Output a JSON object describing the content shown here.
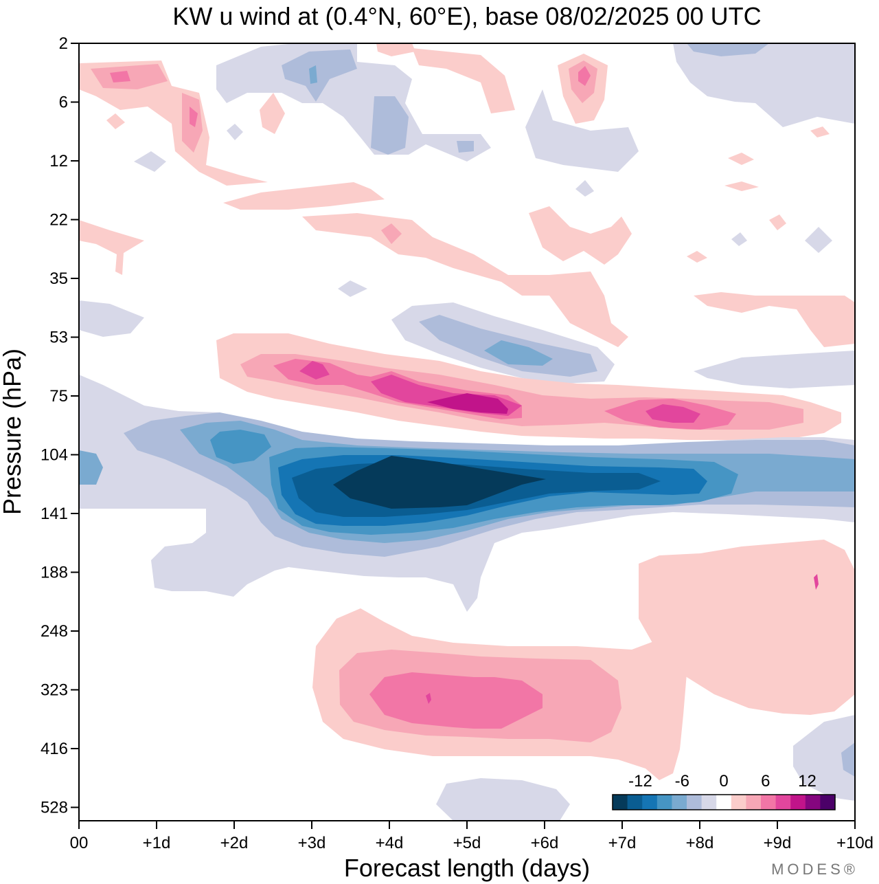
{
  "chart_data": {
    "type": "heatmap",
    "title": "KW u wind at (0.4°N, 60°E),  base 08/02/2025  00 UTC",
    "xlabel": "Forecast length (days)",
    "ylabel": "Pressure (hPa)",
    "x_ticks": [
      "00",
      "+1d",
      "+2d",
      "+3d",
      "+4d",
      "+5d",
      "+6d",
      "+7d",
      "+8d",
      "+9d",
      "+10d"
    ],
    "xlim": [
      0,
      10
    ],
    "y_ticks": [
      2,
      6,
      12,
      22,
      35,
      53,
      75,
      104,
      141,
      188,
      248,
      323,
      416,
      528
    ],
    "y_scale": "log",
    "colorbar": {
      "labels": [
        "-12",
        "-6",
        "0",
        "6",
        "12"
      ],
      "label_positions": [
        -12,
        -6,
        0,
        6,
        12
      ],
      "levels": [
        -16,
        -14,
        -12,
        -10,
        -8,
        -6,
        -4,
        -2,
        2,
        4,
        6,
        8,
        10,
        12,
        14,
        16
      ],
      "colors": [
        "#053a5a",
        "#0a5d92",
        "#1575b4",
        "#4695c4",
        "#7aaad0",
        "#aebcda",
        "#d7d8e8",
        "#ffffff",
        "#fbcdcb",
        "#f7a7b6",
        "#f276a6",
        "#e2469d",
        "#c1148a",
        "#85067f",
        "#4b0068"
      ],
      "placement": "bottom-right"
    },
    "features": [
      {
        "name": "Negative u-wind core",
        "day": 4.2,
        "pressure_hPa": 118,
        "value": -15
      },
      {
        "name": "Negative u-wind band",
        "day_range": [
          0,
          10
        ],
        "pressure_hPa": 115,
        "value": -8
      },
      {
        "name": "Positive u-wind band",
        "day_range": [
          1.8,
          9.8
        ],
        "pressure_hPa": 75,
        "value": 8
      },
      {
        "name": "Positive u-wind max",
        "day": 5.0,
        "pressure_hPa": 81,
        "value": 13
      },
      {
        "name": "Positive u-wind max",
        "day": 3.1,
        "pressure_hPa": 68,
        "value": 10
      },
      {
        "name": "Positive u-wind max",
        "day": 7.5,
        "pressure_hPa": 85,
        "value": 10
      },
      {
        "name": "Negative u-wind lobe",
        "day": 5.8,
        "pressure_hPa": 62,
        "value": -6
      },
      {
        "name": "Positive tropospheric maximum",
        "day": 5.0,
        "pressure_hPa": 345,
        "value": 8
      },
      {
        "name": "Positive stratospheric patch",
        "day": 0.5,
        "pressure_hPa": 3.5,
        "value": 7
      },
      {
        "name": "Positive stratospheric patch",
        "day": 6.5,
        "pressure_hPa": 3.5,
        "value": 7
      }
    ]
  },
  "logo": "MODES®"
}
